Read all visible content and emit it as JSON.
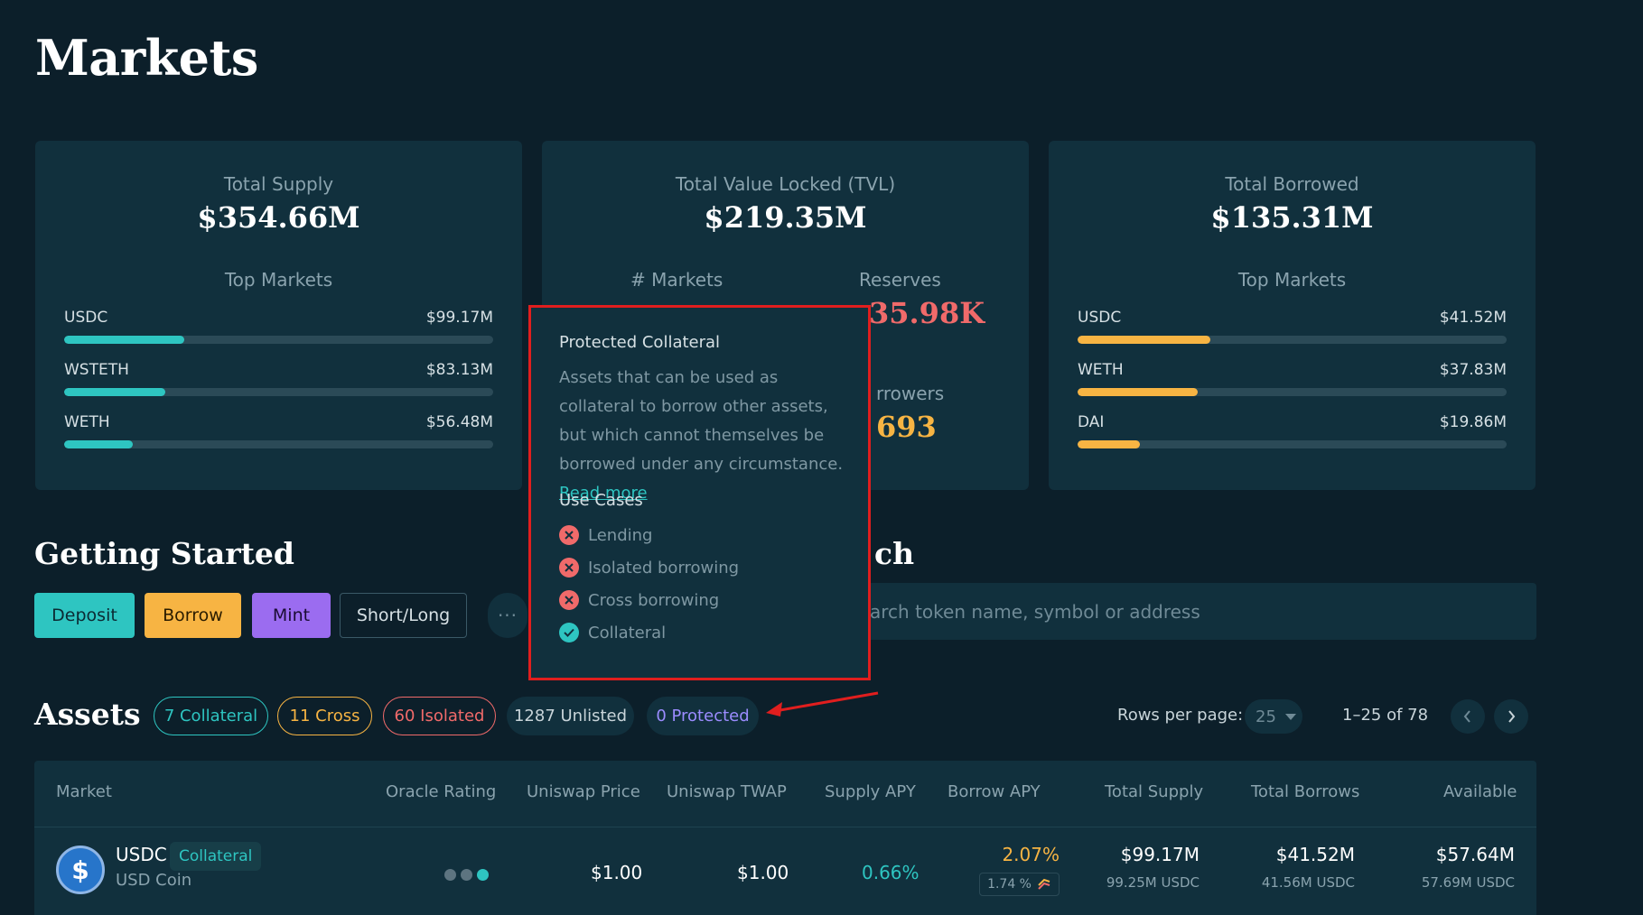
{
  "page": {
    "title": "Markets"
  },
  "summary": {
    "total_supply": {
      "label": "Total Supply",
      "value": "$354.66M",
      "top_markets_label": "Top Markets",
      "markets": [
        {
          "name": "USDC",
          "value": "$99.17M",
          "fraction": 0.28
        },
        {
          "name": "WSTETH",
          "value": "$83.13M",
          "fraction": 0.235
        },
        {
          "name": "WETH",
          "value": "$56.48M",
          "fraction": 0.16
        }
      ]
    },
    "tvl": {
      "label": "Total Value Locked (TVL)",
      "value": "$219.35M",
      "markets_label": "# Markets",
      "reserves_label": "Reserves",
      "reserves_value": "35.98K",
      "borrowers_label": "rrowers",
      "borrowers_value": "693"
    },
    "total_borrowed": {
      "label": "Total Borrowed",
      "value": "$135.31M",
      "top_markets_label": "Top Markets",
      "markets": [
        {
          "name": "USDC",
          "value": "$41.52M",
          "fraction": 0.31
        },
        {
          "name": "WETH",
          "value": "$37.83M",
          "fraction": 0.28
        },
        {
          "name": "DAI",
          "value": "$19.86M",
          "fraction": 0.145
        }
      ]
    }
  },
  "getting_started": {
    "title": "Getting Started",
    "buttons": {
      "deposit": "Deposit",
      "borrow": "Borrow",
      "mint": "Mint",
      "short_long": "Short/Long",
      "more": "···"
    }
  },
  "search": {
    "title_fragment": "ch",
    "placeholder": "arch token name, symbol or address"
  },
  "assets": {
    "title": "Assets",
    "filters": {
      "collateral": "7 Collateral",
      "cross": "11 Cross",
      "isolated": "60 Isolated",
      "unlisted": "1287 Unlisted",
      "protected": "0 Protected"
    },
    "pagination": {
      "rows_label": "Rows per page:",
      "rows_value": "25",
      "range": "1–25 of 78"
    },
    "columns": {
      "market": "Market",
      "oracle": "Oracle Rating",
      "price": "Uniswap Price",
      "twap": "Uniswap TWAP",
      "supply_apy": "Supply APY",
      "borrow_apy": "Borrow APY",
      "total_supply": "Total Supply",
      "total_borrows": "Total Borrows",
      "available": "Available"
    },
    "rows": [
      {
        "symbol": "USDC",
        "name": "USD Coin",
        "tag": "Collateral",
        "price": "$1.00",
        "twap": "$1.00",
        "supply_apy": "0.66%",
        "borrow_apy": "2.07%",
        "borrow_apy_sub": "1.74 %",
        "total_supply": "$99.17M",
        "total_supply_sub": "99.25M USDC",
        "total_borrows": "$41.52M",
        "total_borrows_sub": "41.56M USDC",
        "available": "$57.64M",
        "available_sub": "57.69M USDC"
      }
    ]
  },
  "tooltip": {
    "title": "Protected Collateral",
    "body": "Assets that can be used as collateral to borrow other assets, but which cannot themselves be borrowed under any circumstance.",
    "link": "Read more",
    "use_cases_label": "Use Cases",
    "use_cases": [
      {
        "label": "Lending",
        "allowed": false
      },
      {
        "label": "Isolated borrowing",
        "allowed": false
      },
      {
        "label": "Cross borrowing",
        "allowed": false
      },
      {
        "label": "Collateral",
        "allowed": true
      }
    ]
  },
  "colors": {
    "background": "#0c1f2a",
    "card": "#11303d",
    "teal": "#2ec5c1",
    "orange": "#f7b443",
    "purple": "#9b6cf0",
    "red": "#f06a6a",
    "highlight_box": "#e01e1e"
  }
}
